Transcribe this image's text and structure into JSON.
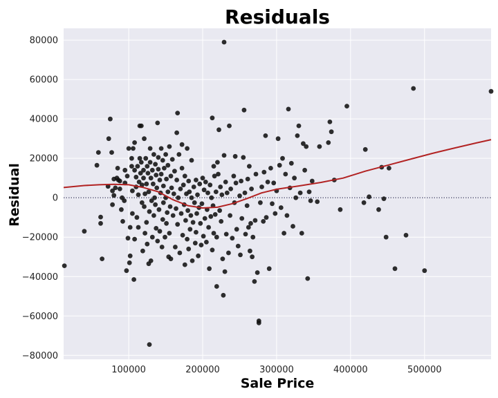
{
  "chart_data": {
    "type": "scatter",
    "title": "Residuals",
    "xlabel": "Sale Price",
    "ylabel": "Residual",
    "xlim": [
      12000,
      590000
    ],
    "ylim": [
      -82000,
      86000
    ],
    "xticks": [
      100000,
      200000,
      300000,
      400000,
      500000
    ],
    "xtick_labels": [
      "100000",
      "200000",
      "300000",
      "400000",
      "500000"
    ],
    "yticks": [
      -80000,
      -60000,
      -40000,
      -20000,
      0,
      20000,
      40000,
      60000,
      80000
    ],
    "ytick_labels": [
      "−80000",
      "−60000",
      "−40000",
      "−20000",
      "0",
      "20000",
      "40000",
      "60000",
      "80000"
    ],
    "grid": true,
    "style": {
      "background": "#e9e9f1",
      "grid_color": "#ffffff",
      "point_color": "#111111",
      "curve_color": "#b22222",
      "zero_line_color": "#555577"
    },
    "reference_line": {
      "y": 0,
      "style": "dotted"
    },
    "points": [
      [
        13000,
        -34500
      ],
      [
        40000,
        -17000
      ],
      [
        57000,
        16500
      ],
      [
        59000,
        23000
      ],
      [
        62000,
        -9800
      ],
      [
        62000,
        -13000
      ],
      [
        64000,
        -31000
      ],
      [
        72000,
        5800
      ],
      [
        73000,
        30000
      ],
      [
        75000,
        40000
      ],
      [
        77000,
        23000
      ],
      [
        78000,
        3500
      ],
      [
        78000,
        -3500
      ],
      [
        80000,
        9500
      ],
      [
        80000,
        1200
      ],
      [
        82000,
        5000
      ],
      [
        84000,
        10000
      ],
      [
        85000,
        15000
      ],
      [
        86000,
        9000
      ],
      [
        88000,
        4500
      ],
      [
        88000,
        8500
      ],
      [
        90000,
        -6000
      ],
      [
        91000,
        0
      ],
      [
        92000,
        -12000
      ],
      [
        94000,
        -1500
      ],
      [
        95000,
        14000
      ],
      [
        95000,
        7500
      ],
      [
        97000,
        -37000
      ],
      [
        98000,
        11000
      ],
      [
        99000,
        -20500
      ],
      [
        100000,
        25000
      ],
      [
        101000,
        -33000
      ],
      [
        102000,
        -15000
      ],
      [
        102000,
        -29500
      ],
      [
        104000,
        20000
      ],
      [
        104000,
        16000
      ],
      [
        105000,
        3500
      ],
      [
        105000,
        -8000
      ],
      [
        106000,
        25000
      ],
      [
        107000,
        -41500
      ],
      [
        108000,
        -21000
      ],
      [
        108000,
        28000
      ],
      [
        108000,
        14000
      ],
      [
        110000,
        10500
      ],
      [
        110000,
        5500
      ],
      [
        111000,
        -10000
      ],
      [
        112000,
        16000
      ],
      [
        113000,
        1500
      ],
      [
        113000,
        -15000
      ],
      [
        114000,
        8000
      ],
      [
        115000,
        20000
      ],
      [
        115000,
        36500
      ],
      [
        116000,
        12500
      ],
      [
        117000,
        36500
      ],
      [
        117000,
        18000
      ],
      [
        118000,
        6500
      ],
      [
        118000,
        -2500
      ],
      [
        119000,
        -27000
      ],
      [
        120000,
        14000
      ],
      [
        120000,
        10000
      ],
      [
        121000,
        -4500
      ],
      [
        121000,
        30000
      ],
      [
        122000,
        -18000
      ],
      [
        122000,
        2000
      ],
      [
        123000,
        20000
      ],
      [
        124000,
        7000
      ],
      [
        124000,
        -12500
      ],
      [
        125000,
        16000
      ],
      [
        125000,
        -23500
      ],
      [
        126000,
        12500
      ],
      [
        127000,
        -33500
      ],
      [
        127000,
        3000
      ],
      [
        128000,
        -74500
      ],
      [
        128000,
        -7000
      ],
      [
        129000,
        25000
      ],
      [
        129000,
        18000
      ],
      [
        130000,
        -32000
      ],
      [
        130000,
        10000
      ],
      [
        131000,
        -1500
      ],
      [
        132000,
        14000
      ],
      [
        132000,
        -20000
      ],
      [
        133000,
        7000
      ],
      [
        134000,
        22000
      ],
      [
        134000,
        -9000
      ],
      [
        135000,
        0
      ],
      [
        136000,
        17000
      ],
      [
        136000,
        -3500
      ],
      [
        137000,
        11500
      ],
      [
        137000,
        -15500
      ],
      [
        138000,
        5000
      ],
      [
        139000,
        38000
      ],
      [
        139000,
        -22000
      ],
      [
        140000,
        14500
      ],
      [
        140000,
        20500
      ],
      [
        141000,
        -6000
      ],
      [
        142000,
        9000
      ],
      [
        142000,
        -17000
      ],
      [
        143000,
        2500
      ],
      [
        144000,
        25000
      ],
      [
        144000,
        12000
      ],
      [
        145000,
        -25000
      ],
      [
        146000,
        -11000
      ],
      [
        146000,
        19000
      ],
      [
        147000,
        6000
      ],
      [
        147000,
        -2500
      ],
      [
        148000,
        15000
      ],
      [
        149000,
        -20000
      ],
      [
        150000,
        0
      ],
      [
        150000,
        22000
      ],
      [
        151000,
        9500
      ],
      [
        151000,
        -13000
      ],
      [
        152000,
        -7500
      ],
      [
        153000,
        16500
      ],
      [
        153000,
        3000
      ],
      [
        154000,
        -30000
      ],
      [
        155000,
        26000
      ],
      [
        155000,
        -18000
      ],
      [
        156000,
        -4500
      ],
      [
        157000,
        11000
      ],
      [
        157000,
        -31000
      ],
      [
        158000,
        5000
      ],
      [
        159000,
        19500
      ],
      [
        160000,
        -9000
      ],
      [
        161000,
        2000
      ],
      [
        162000,
        13500
      ],
      [
        163000,
        -25000
      ],
      [
        164000,
        -5500
      ],
      [
        165000,
        33000
      ],
      [
        165000,
        9000
      ],
      [
        166000,
        43000
      ],
      [
        166000,
        -13500
      ],
      [
        167000,
        0
      ],
      [
        168000,
        22000
      ],
      [
        169000,
        -28000
      ],
      [
        170000,
        4500
      ],
      [
        171000,
        -8000
      ],
      [
        172000,
        15000
      ],
      [
        172000,
        27000
      ],
      [
        173000,
        -19000
      ],
      [
        174000,
        6500
      ],
      [
        175000,
        -3500
      ],
      [
        176000,
        -34000
      ],
      [
        176000,
        11000
      ],
      [
        177000,
        -11500
      ],
      [
        178000,
        2000
      ],
      [
        179000,
        25000
      ],
      [
        179000,
        -21000
      ],
      [
        180000,
        -6500
      ],
      [
        181000,
        8500
      ],
      [
        181000,
        -26000
      ],
      [
        182000,
        3000
      ],
      [
        183000,
        -16000
      ],
      [
        184000,
        -9000
      ],
      [
        185000,
        19000
      ],
      [
        185000,
        0
      ],
      [
        186000,
        -32000
      ],
      [
        187000,
        -12500
      ],
      [
        188000,
        5500
      ],
      [
        189000,
        -2500
      ],
      [
        190000,
        -23000
      ],
      [
        191000,
        9000
      ],
      [
        191000,
        -17500
      ],
      [
        192000,
        -8000
      ],
      [
        193000,
        1500
      ],
      [
        194000,
        -29500
      ],
      [
        195000,
        -5000
      ],
      [
        196000,
        7000
      ],
      [
        197000,
        -13000
      ],
      [
        198000,
        -24000
      ],
      [
        199000,
        -3000
      ],
      [
        200000,
        10000
      ],
      [
        201000,
        -19500
      ],
      [
        202000,
        4000
      ],
      [
        203000,
        -10500
      ],
      [
        204000,
        8000
      ],
      [
        205000,
        -22500
      ],
      [
        206000,
        -6000
      ],
      [
        207000,
        2500
      ],
      [
        208000,
        -15000
      ],
      [
        209000,
        -36000
      ],
      [
        210000,
        6500
      ],
      [
        211000,
        -9500
      ],
      [
        212000,
        0
      ],
      [
        213000,
        40500
      ],
      [
        213000,
        -26500
      ],
      [
        214000,
        -4000
      ],
      [
        215000,
        16000
      ],
      [
        215000,
        -18000
      ],
      [
        216000,
        11000
      ],
      [
        217000,
        -8500
      ],
      [
        218000,
        3000
      ],
      [
        219000,
        -45000
      ],
      [
        219000,
        -20000
      ],
      [
        220000,
        18000
      ],
      [
        221000,
        12000
      ],
      [
        222000,
        34500
      ],
      [
        223000,
        -6500
      ],
      [
        224000,
        5500
      ],
      [
        225000,
        -12000
      ],
      [
        226000,
        1500
      ],
      [
        227000,
        -31000
      ],
      [
        228000,
        -49500
      ],
      [
        229000,
        79000
      ],
      [
        229000,
        21500
      ],
      [
        230000,
        -37500
      ],
      [
        231000,
        8000
      ],
      [
        232000,
        -18500
      ],
      [
        233000,
        2500
      ],
      [
        235000,
        -28000
      ],
      [
        236000,
        36500
      ],
      [
        237000,
        -9000
      ],
      [
        238000,
        4500
      ],
      [
        240000,
        -20500
      ],
      [
        242000,
        11000
      ],
      [
        243000,
        -2500
      ],
      [
        244000,
        21000
      ],
      [
        245000,
        7500
      ],
      [
        246000,
        -16000
      ],
      [
        248000,
        -24500
      ],
      [
        250000,
        1000
      ],
      [
        251000,
        -29000
      ],
      [
        252000,
        8500
      ],
      [
        253000,
        -10500
      ],
      [
        255000,
        20500
      ],
      [
        256000,
        44500
      ],
      [
        257000,
        2500
      ],
      [
        258000,
        -18500
      ],
      [
        260000,
        -4000
      ],
      [
        261000,
        9500
      ],
      [
        262000,
        -15000
      ],
      [
        263000,
        16000
      ],
      [
        264000,
        -27000
      ],
      [
        265000,
        -13000
      ],
      [
        266000,
        4500
      ],
      [
        267000,
        -30000
      ],
      [
        268000,
        -20000
      ],
      [
        270000,
        -42500
      ],
      [
        271000,
        -11500
      ],
      [
        272000,
        12000
      ],
      [
        274000,
        -38000
      ],
      [
        276000,
        -62500
      ],
      [
        276000,
        -63500
      ],
      [
        278000,
        -2500
      ],
      [
        280000,
        5500
      ],
      [
        282000,
        -12000
      ],
      [
        283000,
        13000
      ],
      [
        285000,
        31500
      ],
      [
        286000,
        -10000
      ],
      [
        288000,
        8000
      ],
      [
        290000,
        -36000
      ],
      [
        292000,
        15000
      ],
      [
        294000,
        -3000
      ],
      [
        296000,
        7500
      ],
      [
        298000,
        -8000
      ],
      [
        300000,
        3500
      ],
      [
        302000,
        30000
      ],
      [
        304000,
        16500
      ],
      [
        306000,
        -5000
      ],
      [
        308000,
        20000
      ],
      [
        310000,
        -18000
      ],
      [
        312000,
        12000
      ],
      [
        314000,
        -9000
      ],
      [
        316000,
        45000
      ],
      [
        318000,
        5000
      ],
      [
        320000,
        17500
      ],
      [
        322000,
        -14500
      ],
      [
        324000,
        10000
      ],
      [
        326000,
        0
      ],
      [
        328000,
        31500
      ],
      [
        330000,
        36500
      ],
      [
        332000,
        2500
      ],
      [
        334000,
        -18000
      ],
      [
        336000,
        27500
      ],
      [
        338000,
        14000
      ],
      [
        340000,
        26000
      ],
      [
        342000,
        -41000
      ],
      [
        344000,
        3000
      ],
      [
        346000,
        -1500
      ],
      [
        348000,
        8500
      ],
      [
        355000,
        -2000
      ],
      [
        358000,
        26000
      ],
      [
        370000,
        28000
      ],
      [
        372000,
        38500
      ],
      [
        374000,
        33500
      ],
      [
        378000,
        9000
      ],
      [
        386000,
        -6000
      ],
      [
        395000,
        46500
      ],
      [
        418000,
        -2500
      ],
      [
        420000,
        24500
      ],
      [
        425000,
        500
      ],
      [
        438000,
        -6000
      ],
      [
        442000,
        15500
      ],
      [
        445000,
        -500
      ],
      [
        448000,
        -20000
      ],
      [
        452000,
        15000
      ],
      [
        460000,
        -36000
      ],
      [
        475000,
        -19000
      ],
      [
        485000,
        55500
      ],
      [
        500000,
        -37000
      ],
      [
        590000,
        54000
      ]
    ],
    "lowess": [
      [
        12000,
        5200
      ],
      [
        40000,
        6200
      ],
      [
        60000,
        6600
      ],
      [
        80000,
        6800
      ],
      [
        100000,
        6600
      ],
      [
        120000,
        5200
      ],
      [
        140000,
        3000
      ],
      [
        160000,
        -1000
      ],
      [
        180000,
        -4000
      ],
      [
        200000,
        -5200
      ],
      [
        220000,
        -4800
      ],
      [
        240000,
        -3000
      ],
      [
        260000,
        -400
      ],
      [
        280000,
        2500
      ],
      [
        300000,
        4300
      ],
      [
        330000,
        6000
      ],
      [
        360000,
        7800
      ],
      [
        390000,
        10000
      ],
      [
        420000,
        13500
      ],
      [
        450000,
        16500
      ],
      [
        480000,
        19500
      ],
      [
        510000,
        22500
      ],
      [
        540000,
        25200
      ],
      [
        570000,
        27800
      ],
      [
        590000,
        29500
      ]
    ]
  }
}
